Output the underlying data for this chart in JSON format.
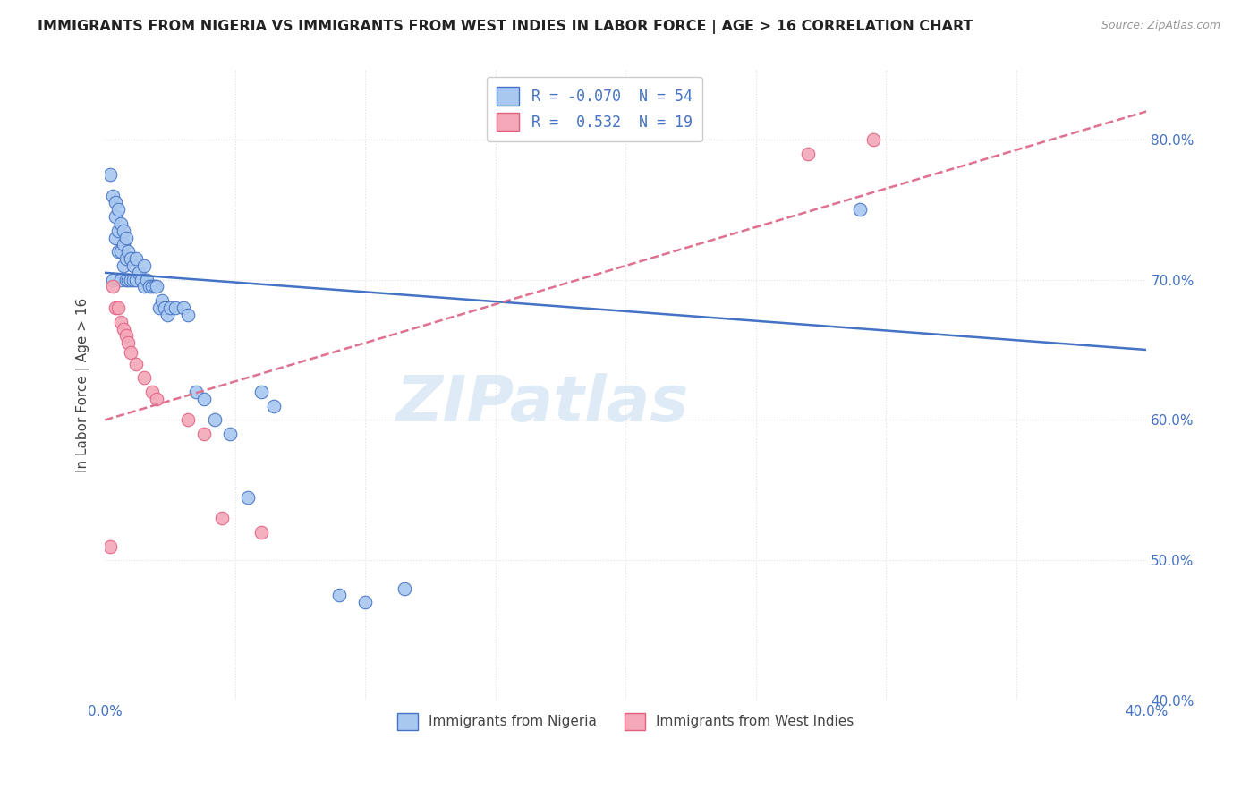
{
  "title": "IMMIGRANTS FROM NIGERIA VS IMMIGRANTS FROM WEST INDIES IN LABOR FORCE | AGE > 16 CORRELATION CHART",
  "source": "Source: ZipAtlas.com",
  "ylabel": "In Labor Force | Age > 16",
  "xlim": [
    0.0,
    0.4
  ],
  "ylim": [
    0.4,
    0.85
  ],
  "nigeria_R": -0.07,
  "nigeria_N": 54,
  "west_indies_R": 0.532,
  "west_indies_N": 19,
  "nigeria_color": "#a8c8f0",
  "west_indies_color": "#f4a8b8",
  "nigeria_edge_color": "#4472c4",
  "west_indies_edge_color": "#e06080",
  "nigeria_line_color": "#4472c4",
  "west_indies_line_color": "#e07090",
  "nigeria_scatter_x": [
    0.002,
    0.003,
    0.003,
    0.004,
    0.004,
    0.004,
    0.005,
    0.005,
    0.005,
    0.006,
    0.006,
    0.006,
    0.007,
    0.007,
    0.007,
    0.008,
    0.008,
    0.008,
    0.009,
    0.009,
    0.01,
    0.01,
    0.011,
    0.011,
    0.012,
    0.012,
    0.013,
    0.014,
    0.015,
    0.015,
    0.016,
    0.017,
    0.018,
    0.019,
    0.02,
    0.021,
    0.022,
    0.023,
    0.024,
    0.025,
    0.027,
    0.03,
    0.032,
    0.035,
    0.038,
    0.042,
    0.048,
    0.055,
    0.06,
    0.065,
    0.09,
    0.1,
    0.115,
    0.29
  ],
  "nigeria_scatter_y": [
    0.775,
    0.7,
    0.76,
    0.73,
    0.745,
    0.755,
    0.72,
    0.735,
    0.75,
    0.7,
    0.72,
    0.74,
    0.71,
    0.725,
    0.735,
    0.7,
    0.715,
    0.73,
    0.7,
    0.72,
    0.7,
    0.715,
    0.7,
    0.71,
    0.7,
    0.715,
    0.705,
    0.7,
    0.695,
    0.71,
    0.7,
    0.695,
    0.695,
    0.695,
    0.695,
    0.68,
    0.685,
    0.68,
    0.675,
    0.68,
    0.68,
    0.68,
    0.675,
    0.62,
    0.615,
    0.6,
    0.59,
    0.545,
    0.62,
    0.61,
    0.475,
    0.47,
    0.48,
    0.75
  ],
  "west_indies_scatter_x": [
    0.002,
    0.003,
    0.004,
    0.005,
    0.006,
    0.007,
    0.008,
    0.009,
    0.01,
    0.012,
    0.015,
    0.018,
    0.02,
    0.032,
    0.038,
    0.045,
    0.06,
    0.27,
    0.295
  ],
  "west_indies_scatter_y": [
    0.51,
    0.695,
    0.68,
    0.68,
    0.67,
    0.665,
    0.66,
    0.655,
    0.648,
    0.64,
    0.63,
    0.62,
    0.615,
    0.6,
    0.59,
    0.53,
    0.52,
    0.79,
    0.8
  ],
  "watermark_text": "ZIPatlas",
  "watermark_color": "#c8dff0",
  "legend_label_1": "R = -0.070  N = 54",
  "legend_label_2": "R =  0.532  N = 19",
  "bottom_legend_1": "Immigrants from Nigeria",
  "bottom_legend_2": "Immigrants from West Indies"
}
